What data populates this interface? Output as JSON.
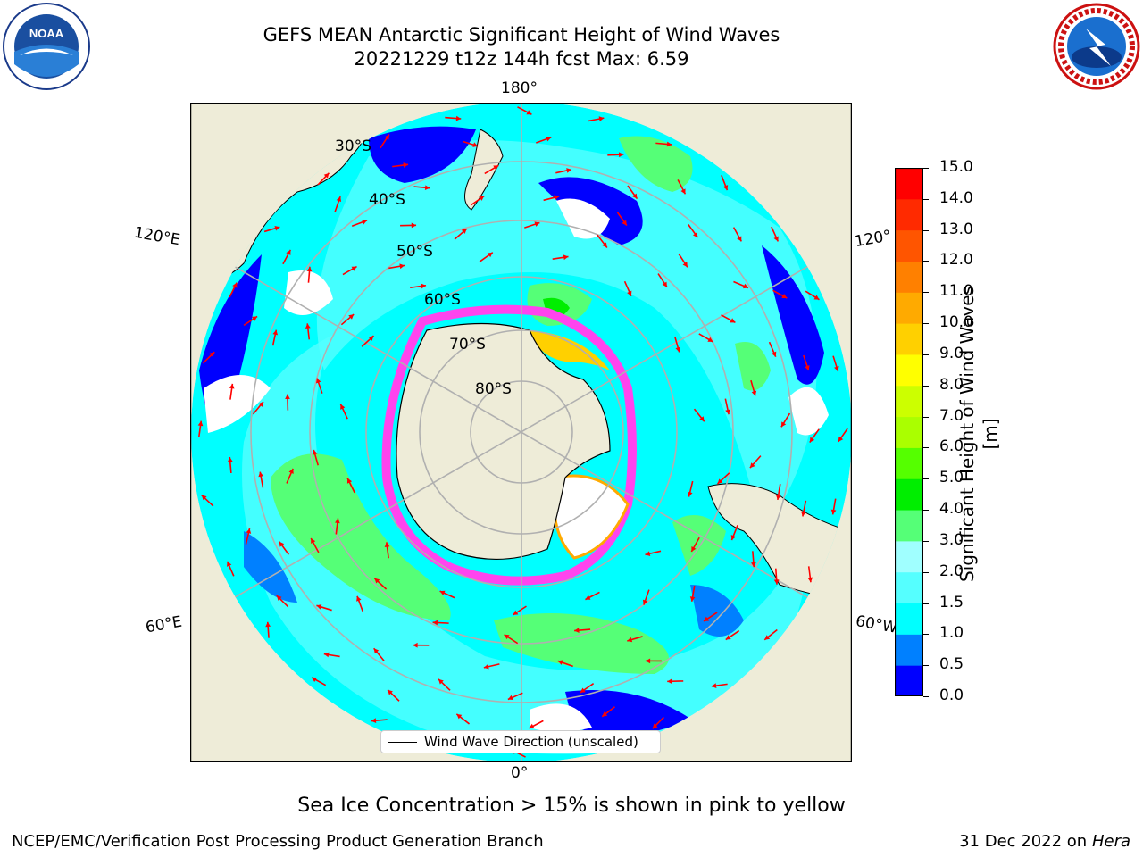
{
  "title": {
    "line1": "GEFS MEAN Antarctic Significant Height of Wind Waves",
    "line2": "20221229 t12z 144h fcst   Max: 6.59"
  },
  "logos": {
    "noaa": {
      "text": "NOAA",
      "ring_text": "NATIONAL OCEANIC AND ATMOSPHERIC ADMINISTRATION · U.S. DEPARTMENT OF COMMERCE"
    },
    "nws": {
      "ring_text": "NATIONAL WEATHER SERVICE"
    }
  },
  "map": {
    "projection": "south-polar-stereographic",
    "lon_labels": {
      "top": "180°",
      "bottom": "0°",
      "upper_left": "120°E",
      "lower_left": "60°E",
      "upper_right": "120°",
      "lower_right": "60°W"
    },
    "lat_labels": [
      "30°S",
      "40°S",
      "50°S",
      "60°S",
      "70°S",
      "80°S"
    ],
    "colors": {
      "land": "#eeecd8",
      "ocean_base": "#00ffff",
      "graticule": "#b0b0b0",
      "arrow": "#ff0000",
      "ice_edge": "#ff44ee"
    }
  },
  "colorbar": {
    "label": "Significant Height of Wind Waves [m]",
    "ticks": [
      "15.0",
      "14.0",
      "13.0",
      "12.0",
      "11.0",
      "10.0",
      "9.0",
      "8.0",
      "7.0",
      "6.0",
      "5.0",
      "4.0",
      "3.0",
      "2.0",
      "1.5",
      "1.0",
      "0.5",
      "0.0"
    ],
    "colors": [
      "#0000ff",
      "#0080ff",
      "#00ffff",
      "#55ffff",
      "#a0ffff",
      "#55ff77",
      "#00ee00",
      "#55ff00",
      "#aaff00",
      "#ccff00",
      "#ffff00",
      "#ffd000",
      "#ffaa00",
      "#ff8000",
      "#ff5500",
      "#ff2a00",
      "#ff0000"
    ]
  },
  "legend": {
    "label": "Wind Wave Direction (unscaled)"
  },
  "note": "Sea Ice Concentration > 15% is shown in pink to yellow",
  "footer": {
    "left": "NCEP/EMC/Verification Post Processing Product Generation Branch",
    "right_date": "31 Dec 2022 on",
    "right_machine": "Hera"
  }
}
